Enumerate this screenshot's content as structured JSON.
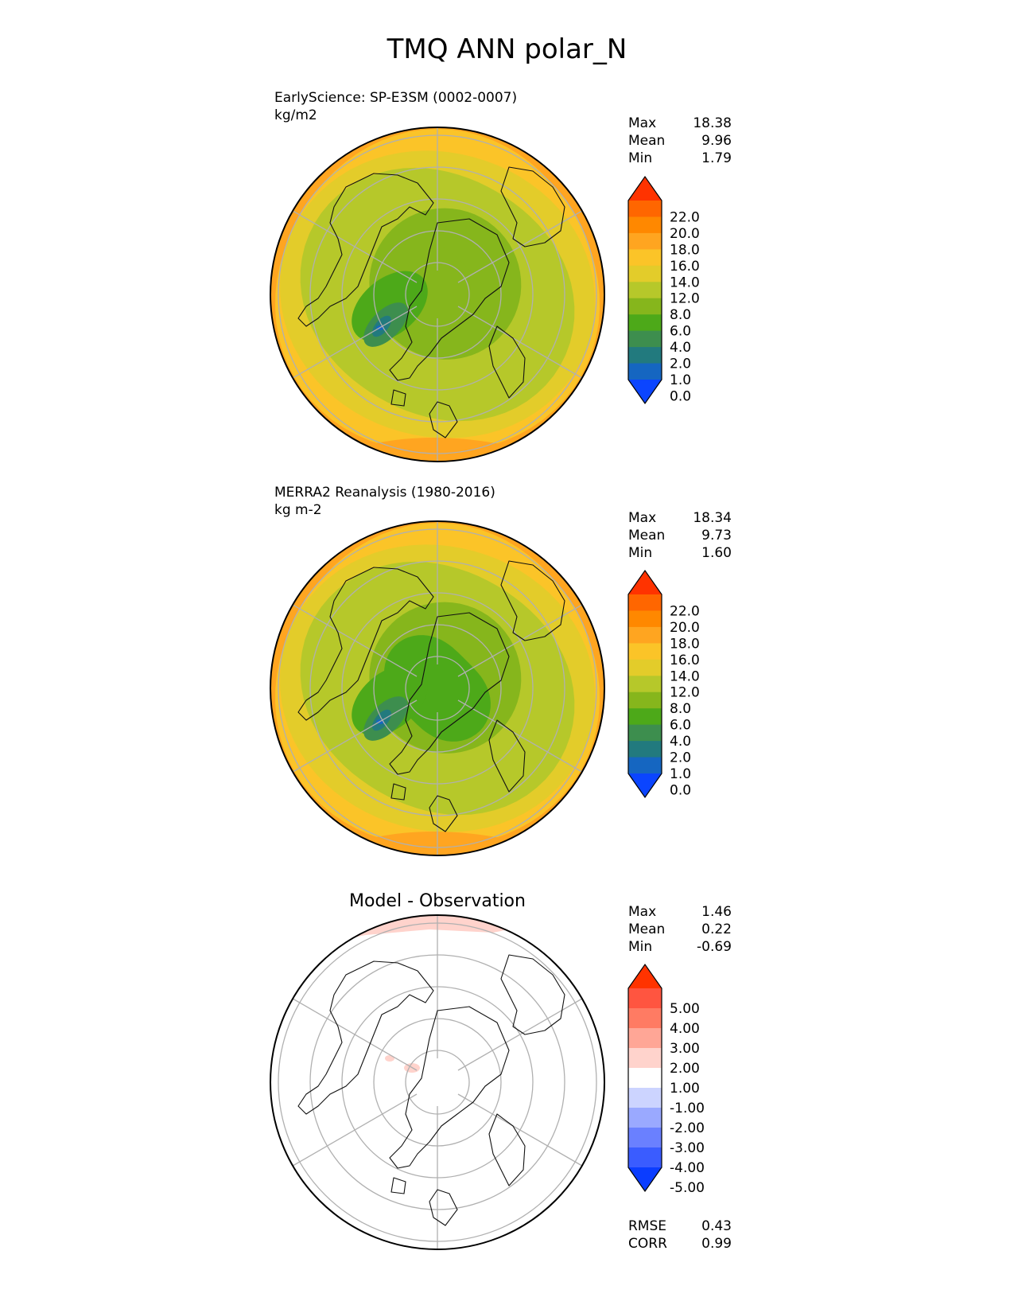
{
  "title": "TMQ ANN polar_N",
  "panels": [
    {
      "id": "test",
      "caption_line1": "EarlyScience: SP-E3SM (0002-0007)",
      "caption_line2": "kg/m2",
      "stats": [
        {
          "label": "Max",
          "value": "18.38"
        },
        {
          "label": "Mean",
          "value": "9.96"
        },
        {
          "label": "Min",
          "value": "1.79"
        }
      ],
      "colorbar": {
        "labels": [
          "22.0",
          "20.0",
          "18.0",
          "16.0",
          "14.0",
          "12.0",
          "8.0",
          "6.0",
          "4.0",
          "2.0",
          "1.0",
          "0.0"
        ],
        "colors": [
          "#ff3300",
          "#ff6600",
          "#ff8800",
          "#ffa520",
          "#fbc428",
          "#e3cc2a",
          "#b6c82a",
          "#86b61c",
          "#4da919",
          "#3d8e4e",
          "#227a7e",
          "#1566c1",
          "#0b45ff"
        ]
      }
    },
    {
      "id": "ref",
      "caption_line1": "MERRA2 Reanalysis (1980-2016)",
      "caption_line2": "kg m-2",
      "stats": [
        {
          "label": "Max",
          "value": "18.34"
        },
        {
          "label": "Mean",
          "value": "9.73"
        },
        {
          "label": "Min",
          "value": "1.60"
        }
      ],
      "colorbar": {
        "labels": [
          "22.0",
          "20.0",
          "18.0",
          "16.0",
          "14.0",
          "12.0",
          "8.0",
          "6.0",
          "4.0",
          "2.0",
          "1.0",
          "0.0"
        ],
        "colors": [
          "#ff3300",
          "#ff6600",
          "#ff8800",
          "#ffa520",
          "#fbc428",
          "#e3cc2a",
          "#b6c82a",
          "#86b61c",
          "#4da919",
          "#3d8e4e",
          "#227a7e",
          "#1566c1",
          "#0b45ff"
        ]
      }
    },
    {
      "id": "diff",
      "title": "Model - Observation",
      "stats": [
        {
          "label": "Max",
          "value": "1.46"
        },
        {
          "label": "Mean",
          "value": "0.22"
        },
        {
          "label": "Min",
          "value": "-0.69"
        }
      ],
      "colorbar": {
        "labels": [
          "5.00",
          "4.00",
          "3.00",
          "2.00",
          "1.00",
          "-1.00",
          "-2.00",
          "-3.00",
          "-4.00",
          "-5.00"
        ],
        "colors": [
          "#ff3300",
          "#ff5540",
          "#ff7b63",
          "#ffa696",
          "#ffd3cc",
          "#ffffff",
          "#ccd4ff",
          "#9aa9ff",
          "#6a80ff",
          "#3a5cff",
          "#0b3dff"
        ]
      },
      "metrics": [
        {
          "label": "RMSE",
          "value": "0.43"
        },
        {
          "label": "CORR",
          "value": "0.99"
        }
      ]
    }
  ]
}
